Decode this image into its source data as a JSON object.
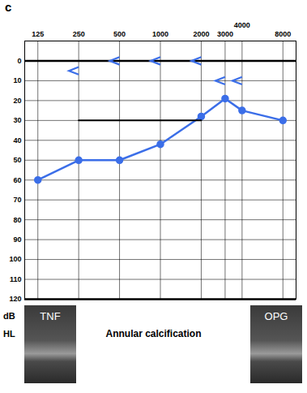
{
  "chart_data": {
    "type": "line",
    "panel_label": "c",
    "ylabel": "dB HL",
    "annotations": [
      "Annular calcification",
      "TNF",
      "OPG"
    ],
    "x": [
      125,
      250,
      500,
      1000,
      2000,
      3000,
      4000,
      8000
    ],
    "series": [
      {
        "color": "#3b6ee8",
        "marker": "circle",
        "line_style": "solid",
        "values": [
          60,
          50,
          50,
          42,
          28,
          19,
          25,
          30
        ]
      },
      {
        "color": "#3b6ee8",
        "marker": "<",
        "line_style": "none",
        "values": [
          null,
          5,
          0,
          0,
          0,
          10,
          10,
          null
        ]
      },
      {
        "color": "#000000",
        "marker": "none",
        "line_style": "solid",
        "values": [
          null,
          30,
          30,
          30,
          30,
          null,
          null,
          null
        ]
      }
    ],
    "xlim": [
      100,
      10000
    ],
    "xticks": [
      125,
      250,
      500,
      1000,
      2000,
      3000,
      4000,
      8000
    ],
    "ylim": [
      -10,
      120
    ],
    "yticks": [
      0,
      10,
      20,
      30,
      40,
      50,
      60,
      70,
      80,
      90,
      100,
      110,
      120
    ],
    "log": "x",
    "grid": true
  }
}
